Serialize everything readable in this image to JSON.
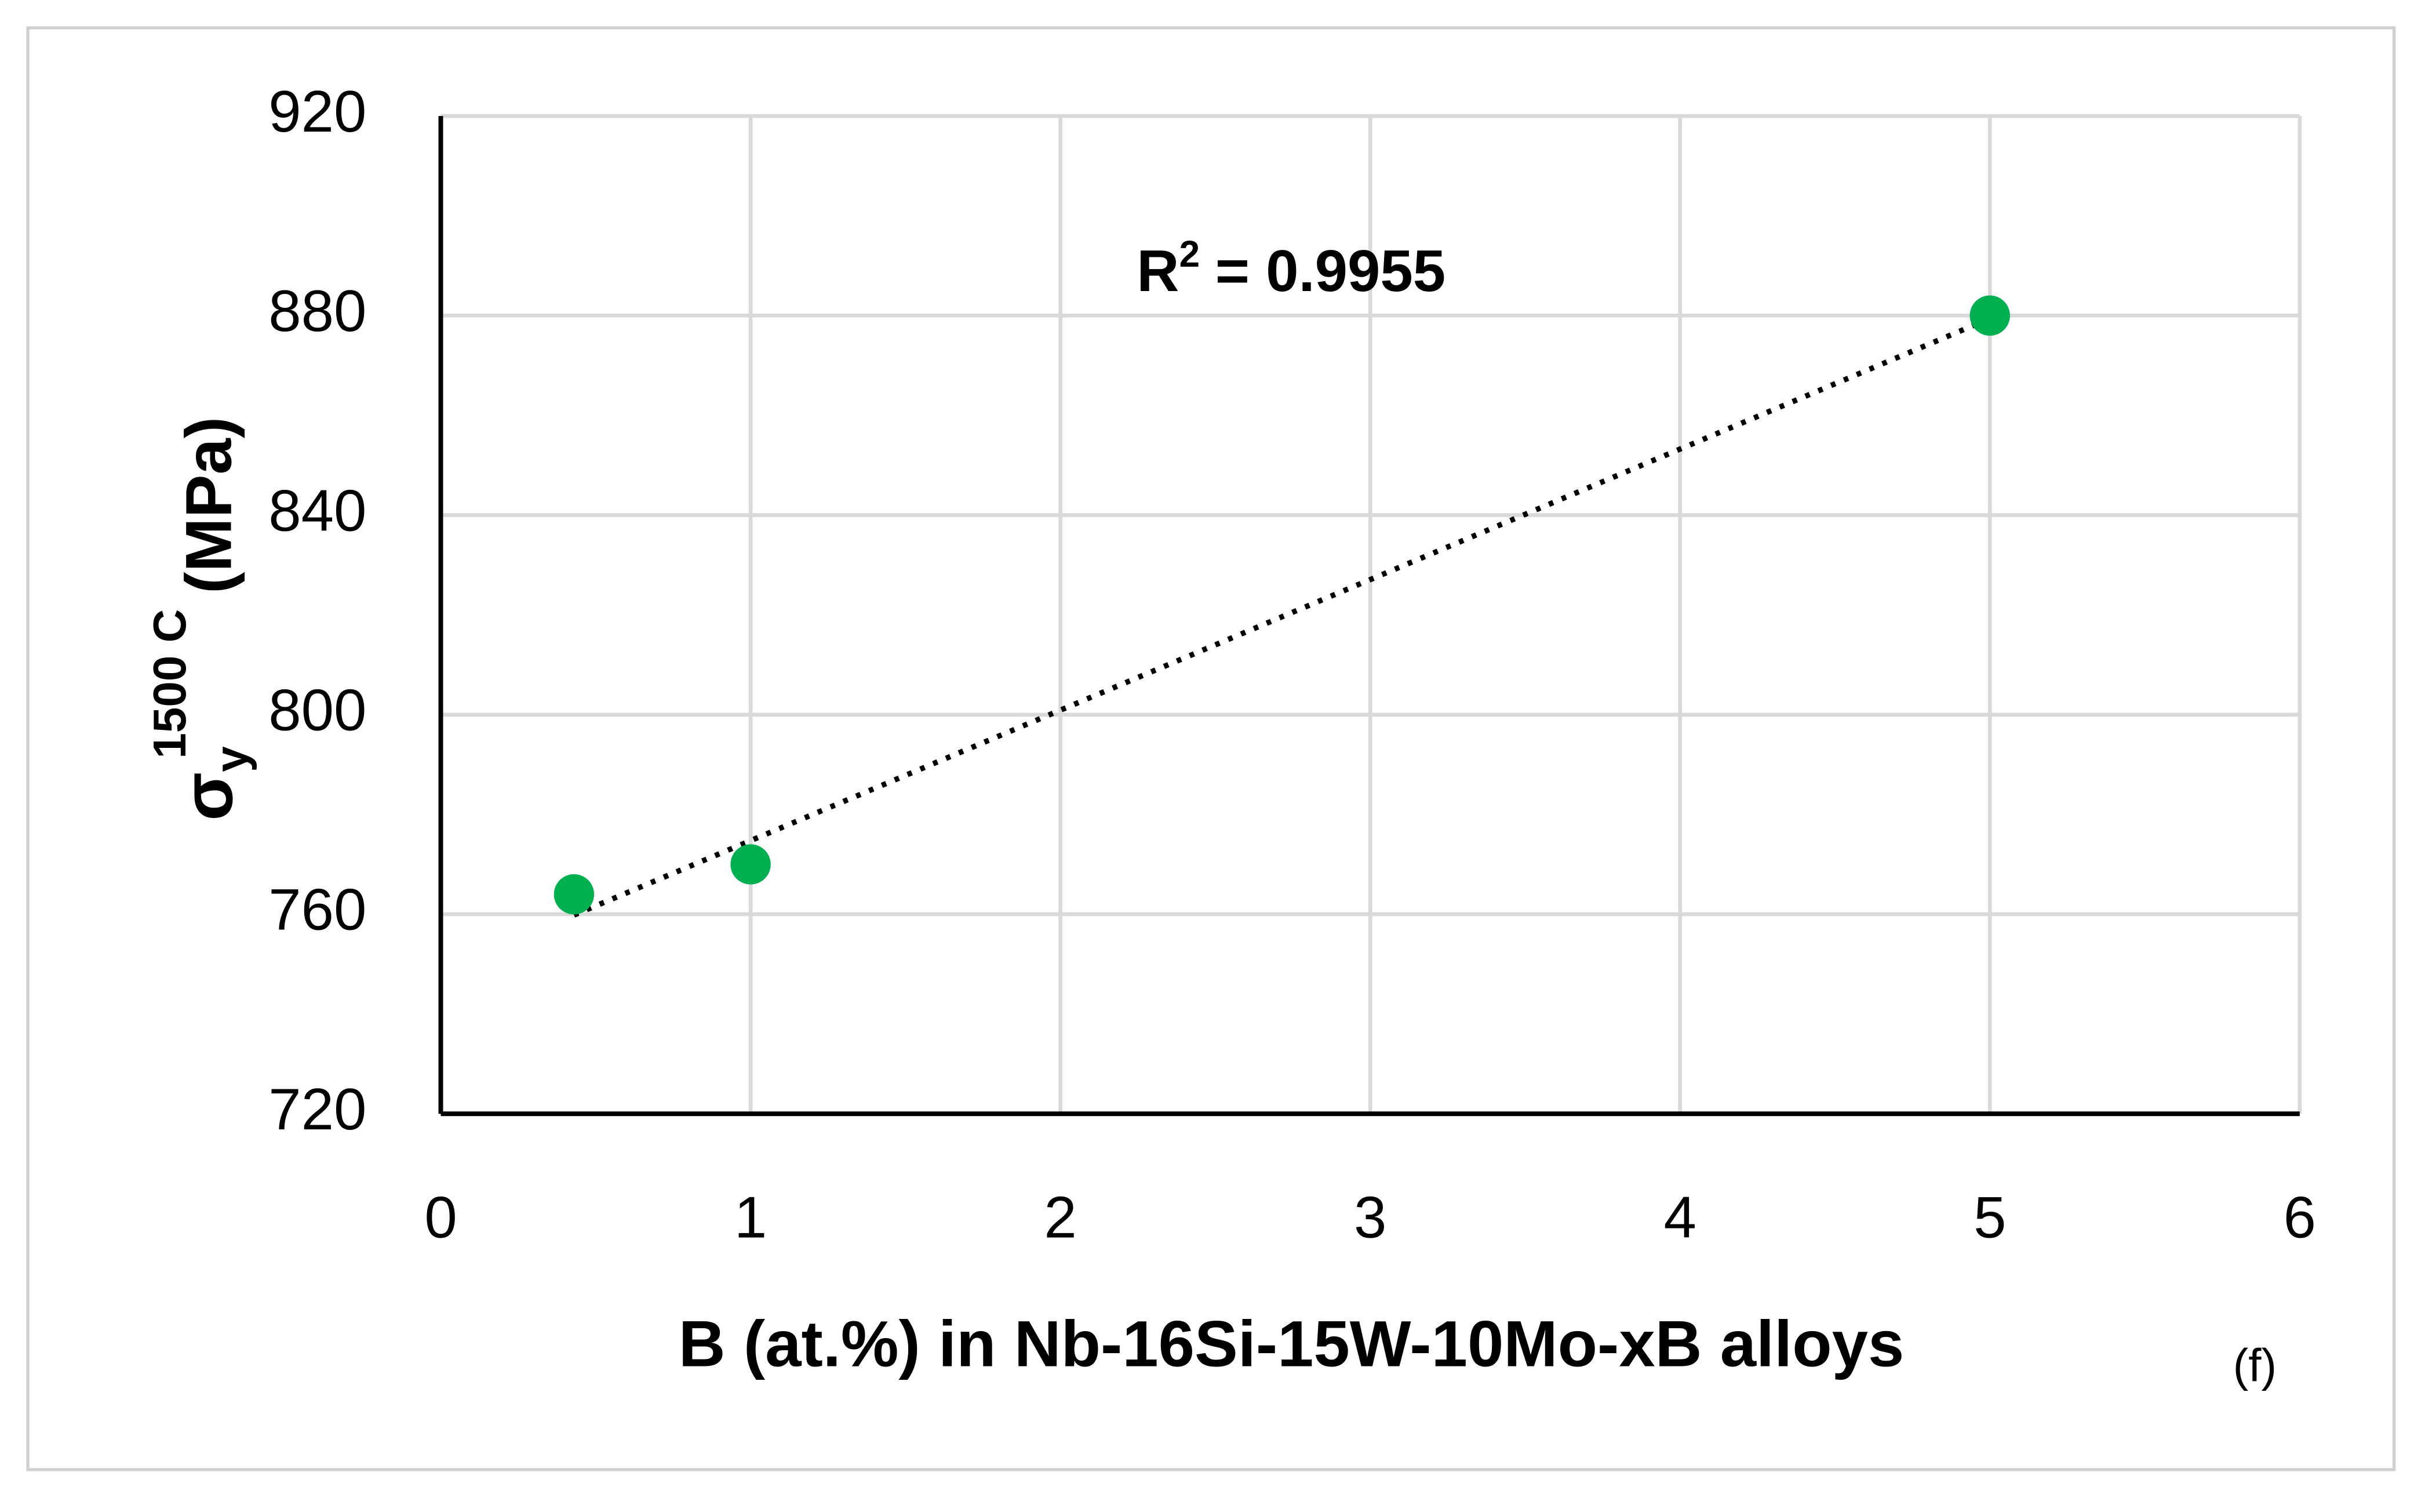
{
  "chart_data": {
    "type": "scatter",
    "x_label": "B (at.%) in Nb-16Si-15W-10Mo-xB alloys",
    "y_label": {
      "symbol": "σ",
      "subscript": "y",
      "superscript": "1500 C",
      "unit": "(MPa)"
    },
    "panel_label": "(f)",
    "series": [
      {
        "color": "#00b050",
        "x": [
          0.43,
          1,
          5
        ],
        "values": [
          764,
          770,
          880
        ]
      }
    ],
    "trendline": {
      "style": "dotted",
      "color": "#000000",
      "label_base": "R",
      "label_sup": "2",
      "label_value": "= 0.9955"
    },
    "xlim": [
      0,
      6
    ],
    "xticks": [
      0,
      1,
      2,
      3,
      4,
      5,
      6
    ],
    "ylim": [
      720,
      920
    ],
    "yticks": [
      720,
      760,
      800,
      840,
      880,
      920
    ],
    "grid": true
  }
}
